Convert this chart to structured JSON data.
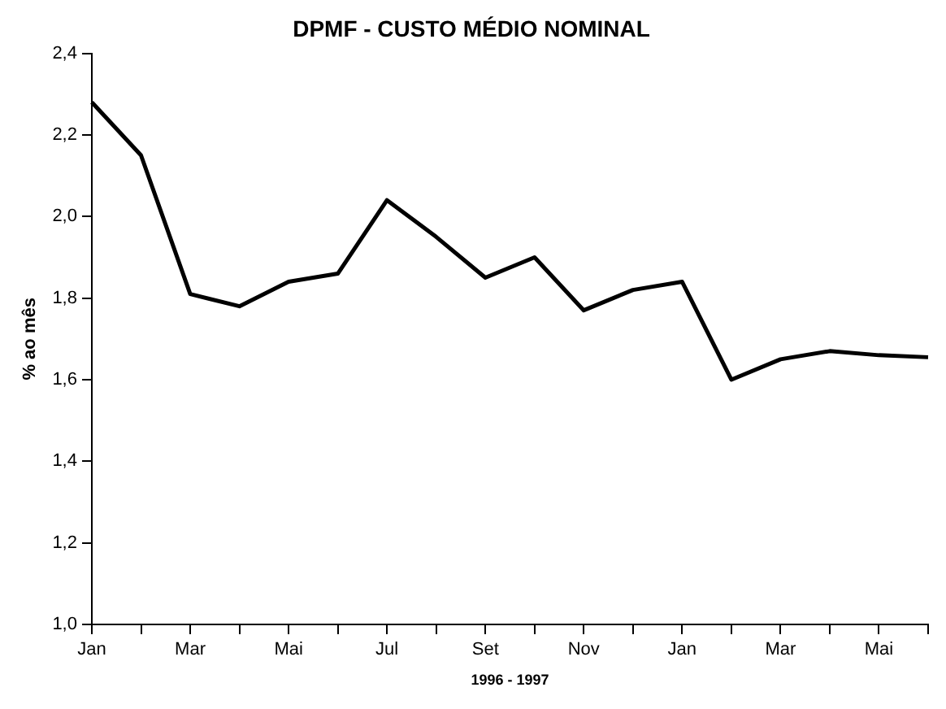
{
  "chart_data": {
    "type": "line",
    "title": "DPMF - CUSTO MÉDIO NOMINAL",
    "xlabel": "1996 - 1997",
    "ylabel": "% ao mês",
    "categories": [
      "Jan",
      null,
      "Mar",
      null,
      "Mai",
      null,
      "Jul",
      null,
      "Set",
      null,
      "Nov",
      null,
      "Jan",
      null,
      "Mar",
      null,
      "Mai",
      null
    ],
    "series": [
      {
        "color": "#000000",
        "values": [
          2.28,
          2.15,
          1.81,
          1.78,
          1.84,
          1.86,
          2.04,
          1.95,
          1.85,
          1.9,
          1.77,
          1.82,
          1.84,
          1.6,
          1.65,
          1.67,
          1.66,
          1.655
        ]
      }
    ],
    "ylim": [
      1.0,
      2.4
    ],
    "yticks": [
      {
        "value": 1.0,
        "label": "1,0"
      },
      {
        "value": 1.2,
        "label": "1,2"
      },
      {
        "value": 1.4,
        "label": "1,4"
      },
      {
        "value": 1.6,
        "label": "1,6"
      },
      {
        "value": 1.8,
        "label": "1,8"
      },
      {
        "value": 2.0,
        "label": "2,0"
      },
      {
        "value": 2.2,
        "label": "2,2"
      },
      {
        "value": 2.4,
        "label": "2,4"
      }
    ],
    "grid": false,
    "legend": false,
    "marker": "none",
    "line_style": "solid"
  }
}
